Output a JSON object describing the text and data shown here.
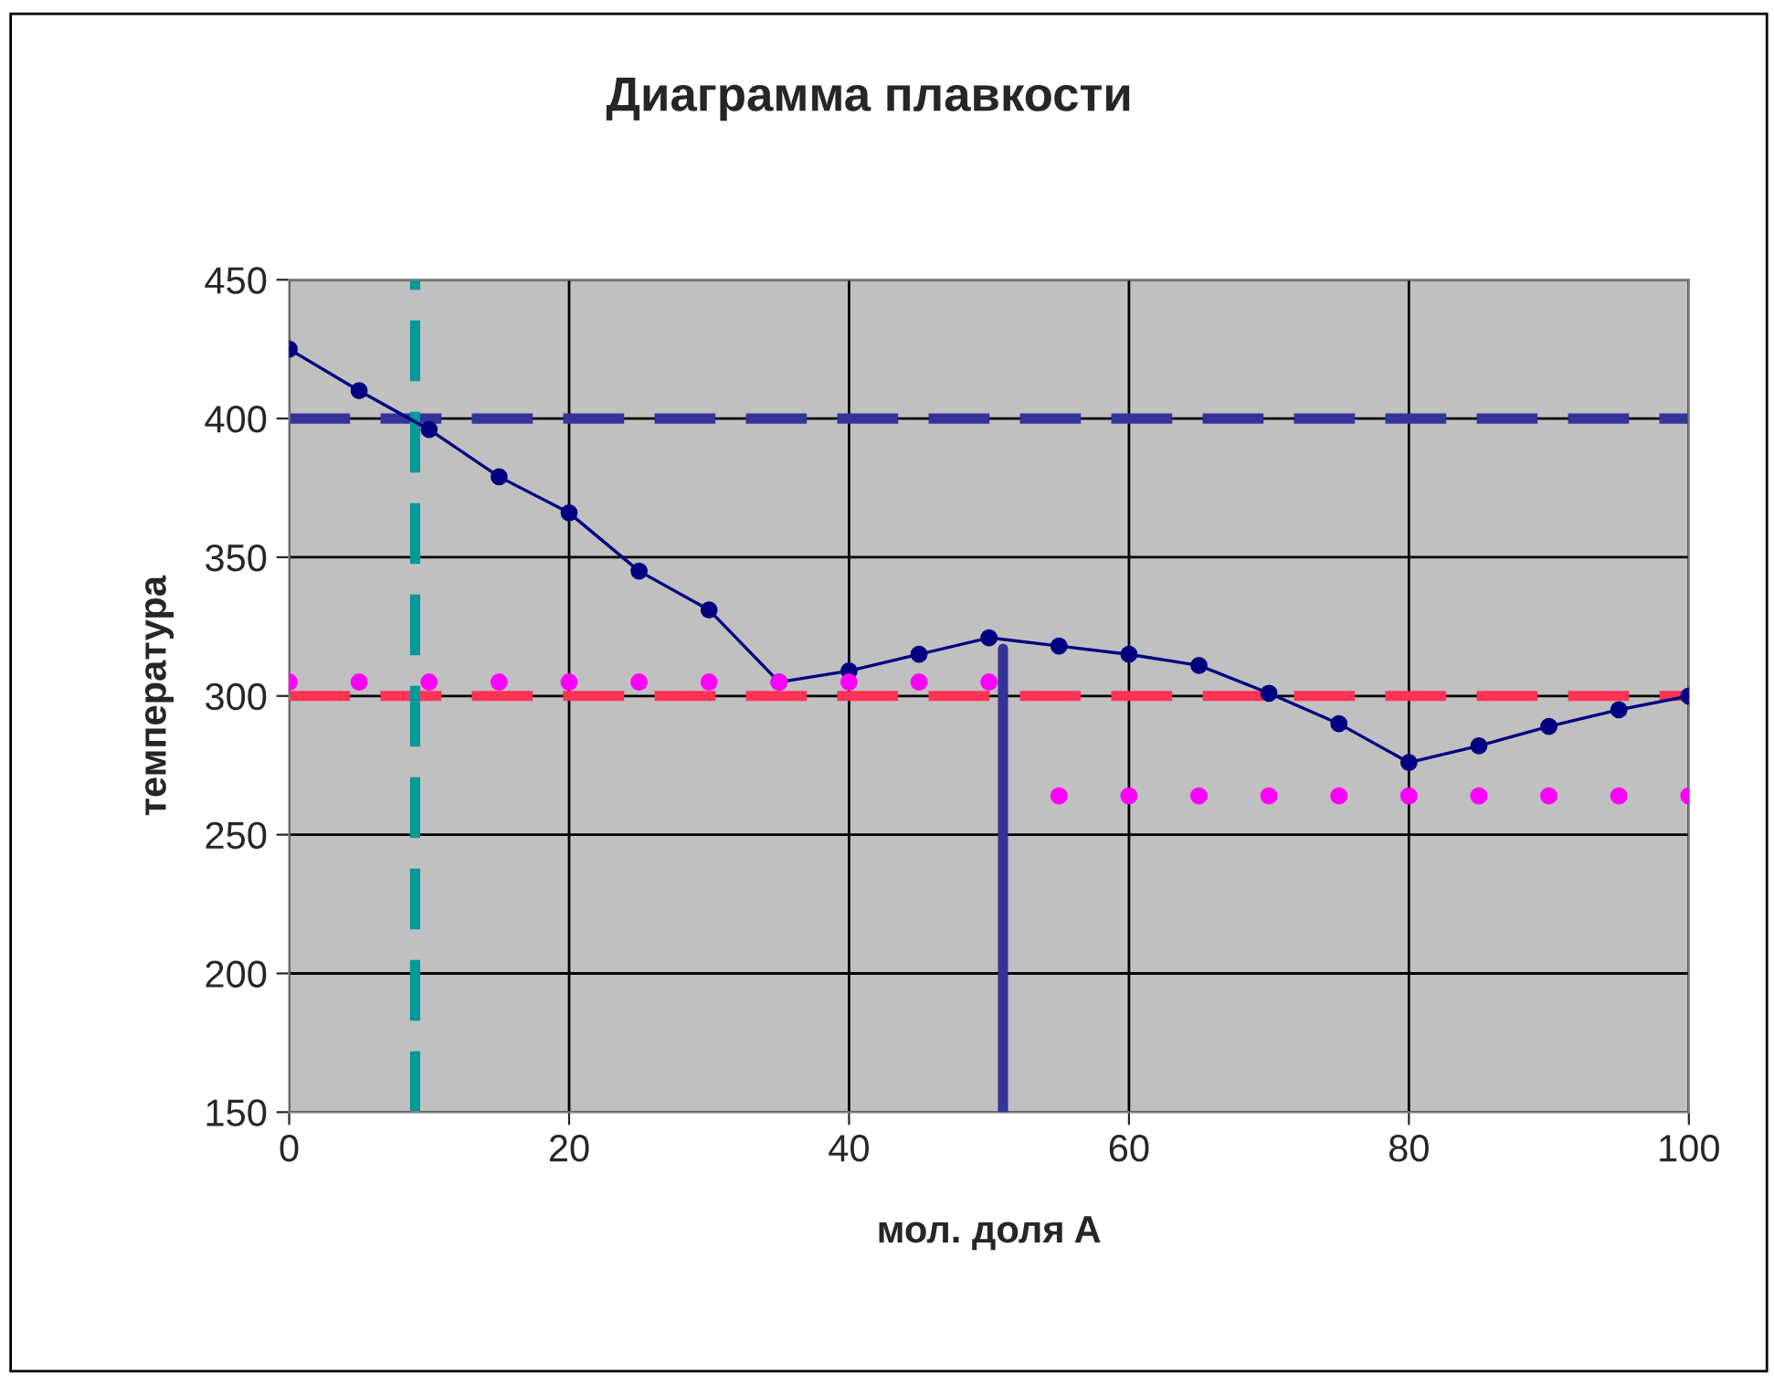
{
  "chart_data": {
    "type": "line",
    "title": "Диаграмма плавкости",
    "xlabel": "мол. доля A",
    "ylabel": "температура",
    "x": [
      0,
      5,
      10,
      15,
      20,
      25,
      30,
      35,
      40,
      45,
      50,
      55,
      60,
      65,
      70,
      75,
      80,
      85,
      90,
      95,
      100
    ],
    "series": [
      {
        "color": "#000080",
        "marker": "circle",
        "line_style": "solid",
        "values": [
          425,
          410,
          396,
          379,
          366,
          345,
          331,
          305,
          309,
          315,
          321,
          318,
          315,
          311,
          301,
          290,
          276,
          282,
          289,
          295,
          300
        ]
      },
      {
        "type": "scatter",
        "color": "#ff00ff",
        "marker": "circle",
        "values": [
          305,
          305,
          305,
          305,
          305,
          305,
          305,
          305,
          305,
          305,
          305,
          264,
          264,
          264,
          264,
          264,
          264,
          264,
          264,
          264,
          264
        ]
      },
      {
        "color": "#333399",
        "marker": "none",
        "line_style": "solid",
        "x": [
          51,
          51
        ],
        "values": [
          150,
          317
        ]
      }
    ],
    "ref_lines": [
      {
        "axis": "y",
        "value": 400,
        "color": "#333399",
        "line_style": "dashed"
      },
      {
        "axis": "y",
        "value": 300,
        "color": "#ff3355",
        "line_style": "dashed"
      },
      {
        "axis": "x",
        "value": 9,
        "color": "#009999",
        "line_style": "dashed"
      }
    ],
    "xlim": [
      0,
      100
    ],
    "xticks": [
      0,
      20,
      40,
      60,
      80,
      100
    ],
    "ylim": [
      150,
      450
    ],
    "yticks": [
      150,
      200,
      250,
      300,
      350,
      400,
      450
    ],
    "grid": true,
    "legend": false
  }
}
